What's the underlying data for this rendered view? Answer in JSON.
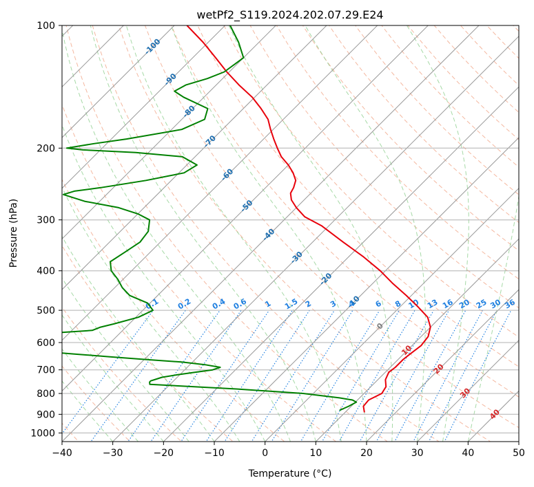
{
  "chart_data": {
    "type": "line",
    "title": "wetPf2_S119.2024.202.07.29.E24",
    "xlabel": "Temperature (°C)",
    "ylabel": "Pressure (hPa)",
    "xlim": [
      -40,
      50
    ],
    "ylim": [
      1050,
      100
    ],
    "y_scale": "log",
    "grid": true,
    "x_ticks": [
      -40,
      -30,
      -20,
      -10,
      0,
      10,
      20,
      30,
      40,
      50
    ],
    "y_ticks": [
      100,
      200,
      300,
      400,
      500,
      600,
      700,
      800,
      900,
      1000
    ],
    "colors": {
      "temperature": "#e8000b",
      "dewpoint": "#008000",
      "dry_adiabat": "#f0a080",
      "moist_adiabat": "#90d090",
      "mixing_ratio": "#2080e0",
      "isotherm": "#999999",
      "isotherm_label": "#1f6fb0",
      "positive_isotherm_label": "#d62728",
      "zero_label": "#7f7f7f"
    },
    "isotherm_labels": [
      {
        "text": "-100",
        "t": -100,
        "p": 113
      },
      {
        "text": "-90",
        "t": -90,
        "p": 136
      },
      {
        "text": "-80",
        "t": -80,
        "p": 163
      },
      {
        "text": "-70",
        "t": -70,
        "p": 193
      },
      {
        "text": "-60",
        "t": -60,
        "p": 233
      },
      {
        "text": "-50",
        "t": -50,
        "p": 278
      },
      {
        "text": "-40",
        "t": -40,
        "p": 327
      },
      {
        "text": "-30",
        "t": -30,
        "p": 372
      },
      {
        "text": "-20",
        "t": -20,
        "p": 420
      },
      {
        "text": "-10",
        "t": -10,
        "p": 478
      },
      {
        "text": "0",
        "t": 0,
        "p": 548
      },
      {
        "text": "10",
        "t": 10,
        "p": 628
      },
      {
        "text": "20",
        "t": 20,
        "p": 698
      },
      {
        "text": "30",
        "t": 30,
        "p": 800
      },
      {
        "text": "40",
        "t": 40,
        "p": 902
      }
    ],
    "mixing_ratio_labels": [
      "0.1",
      "0.2",
      "0.4",
      "0.6",
      "1",
      "1.5",
      "2",
      "3",
      "4",
      "6",
      "8",
      "10",
      "13",
      "16",
      "20",
      "25",
      "30",
      "36"
    ],
    "mixing_ratio_values": [
      0.1,
      0.2,
      0.4,
      0.6,
      1,
      1.5,
      2,
      3,
      4,
      6,
      8,
      10,
      13,
      16,
      20,
      25,
      30,
      36
    ],
    "series": [
      {
        "key": "temperature",
        "p": [
          890,
          860,
          830,
          800,
          770,
          740,
          710,
          690,
          660,
          640,
          610,
          580,
          550,
          520,
          490,
          460,
          430,
          400,
          370,
          340,
          310,
          295,
          280,
          268,
          258,
          250,
          240,
          230,
          220,
          210,
          200,
          190,
          180,
          170,
          160,
          150,
          140,
          130,
          120,
          110,
          100
        ],
        "t": [
          13.8,
          12.4,
          12.2,
          13.5,
          13.0,
          11.5,
          10.7,
          11.0,
          11.0,
          11.3,
          11.8,
          11.4,
          10.0,
          7.5,
          3.5,
          -1.0,
          -6.0,
          -11.0,
          -17.0,
          -24.0,
          -31.5,
          -36.5,
          -40.0,
          -42.5,
          -44.0,
          -44.5,
          -45.5,
          -47.5,
          -50.0,
          -53.0,
          -55.5,
          -58.0,
          -60.5,
          -63.0,
          -66.5,
          -70.5,
          -75.5,
          -80.5,
          -85.5,
          -91.0,
          -97.5
        ]
      },
      {
        "key": "dewpoint",
        "p": [
          880,
          860,
          840,
          830,
          820,
          800,
          780,
          760,
          750,
          745,
          740,
          730,
          720,
          710,
          700,
          690,
          680,
          670,
          660,
          650,
          640,
          620,
          600,
          590,
          580,
          570,
          560,
          550,
          540,
          520,
          500,
          480,
          460,
          440,
          420,
          400,
          380,
          360,
          340,
          320,
          300,
          290,
          280,
          270,
          260,
          255,
          250,
          240,
          230,
          220,
          210,
          205,
          202,
          200,
          195,
          190,
          180,
          170,
          160,
          150,
          145,
          140,
          135,
          130,
          120,
          110,
          100
        ],
        "t": [
          8.5,
          9.5,
          10.2,
          9.0,
          6.0,
          -2.0,
          -16.0,
          -34.0,
          -34.5,
          -34.5,
          -34.0,
          -33.0,
          -30.5,
          -27.5,
          -24.5,
          -23.5,
          -27.0,
          -32.0,
          -40.0,
          -47.5,
          -55.0,
          -70.0,
          -80.0,
          -73.5,
          -69.5,
          -64.5,
          -56.0,
          -55.0,
          -53.0,
          -49.5,
          -48.0,
          -50.5,
          -55.5,
          -58.5,
          -61.0,
          -64.0,
          -66.0,
          -65.0,
          -64.0,
          -64.5,
          -66.5,
          -70.0,
          -75.0,
          -83.0,
          -88.5,
          -87.0,
          -82.5,
          -75.0,
          -69.0,
          -68.0,
          -72.5,
          -82.5,
          -93.5,
          -97.0,
          -92.5,
          -87.0,
          -78.0,
          -75.5,
          -77.0,
          -84.0,
          -87.0,
          -86.0,
          -83.0,
          -81.0,
          -80.0,
          -84.0,
          -89.0
        ]
      }
    ]
  }
}
